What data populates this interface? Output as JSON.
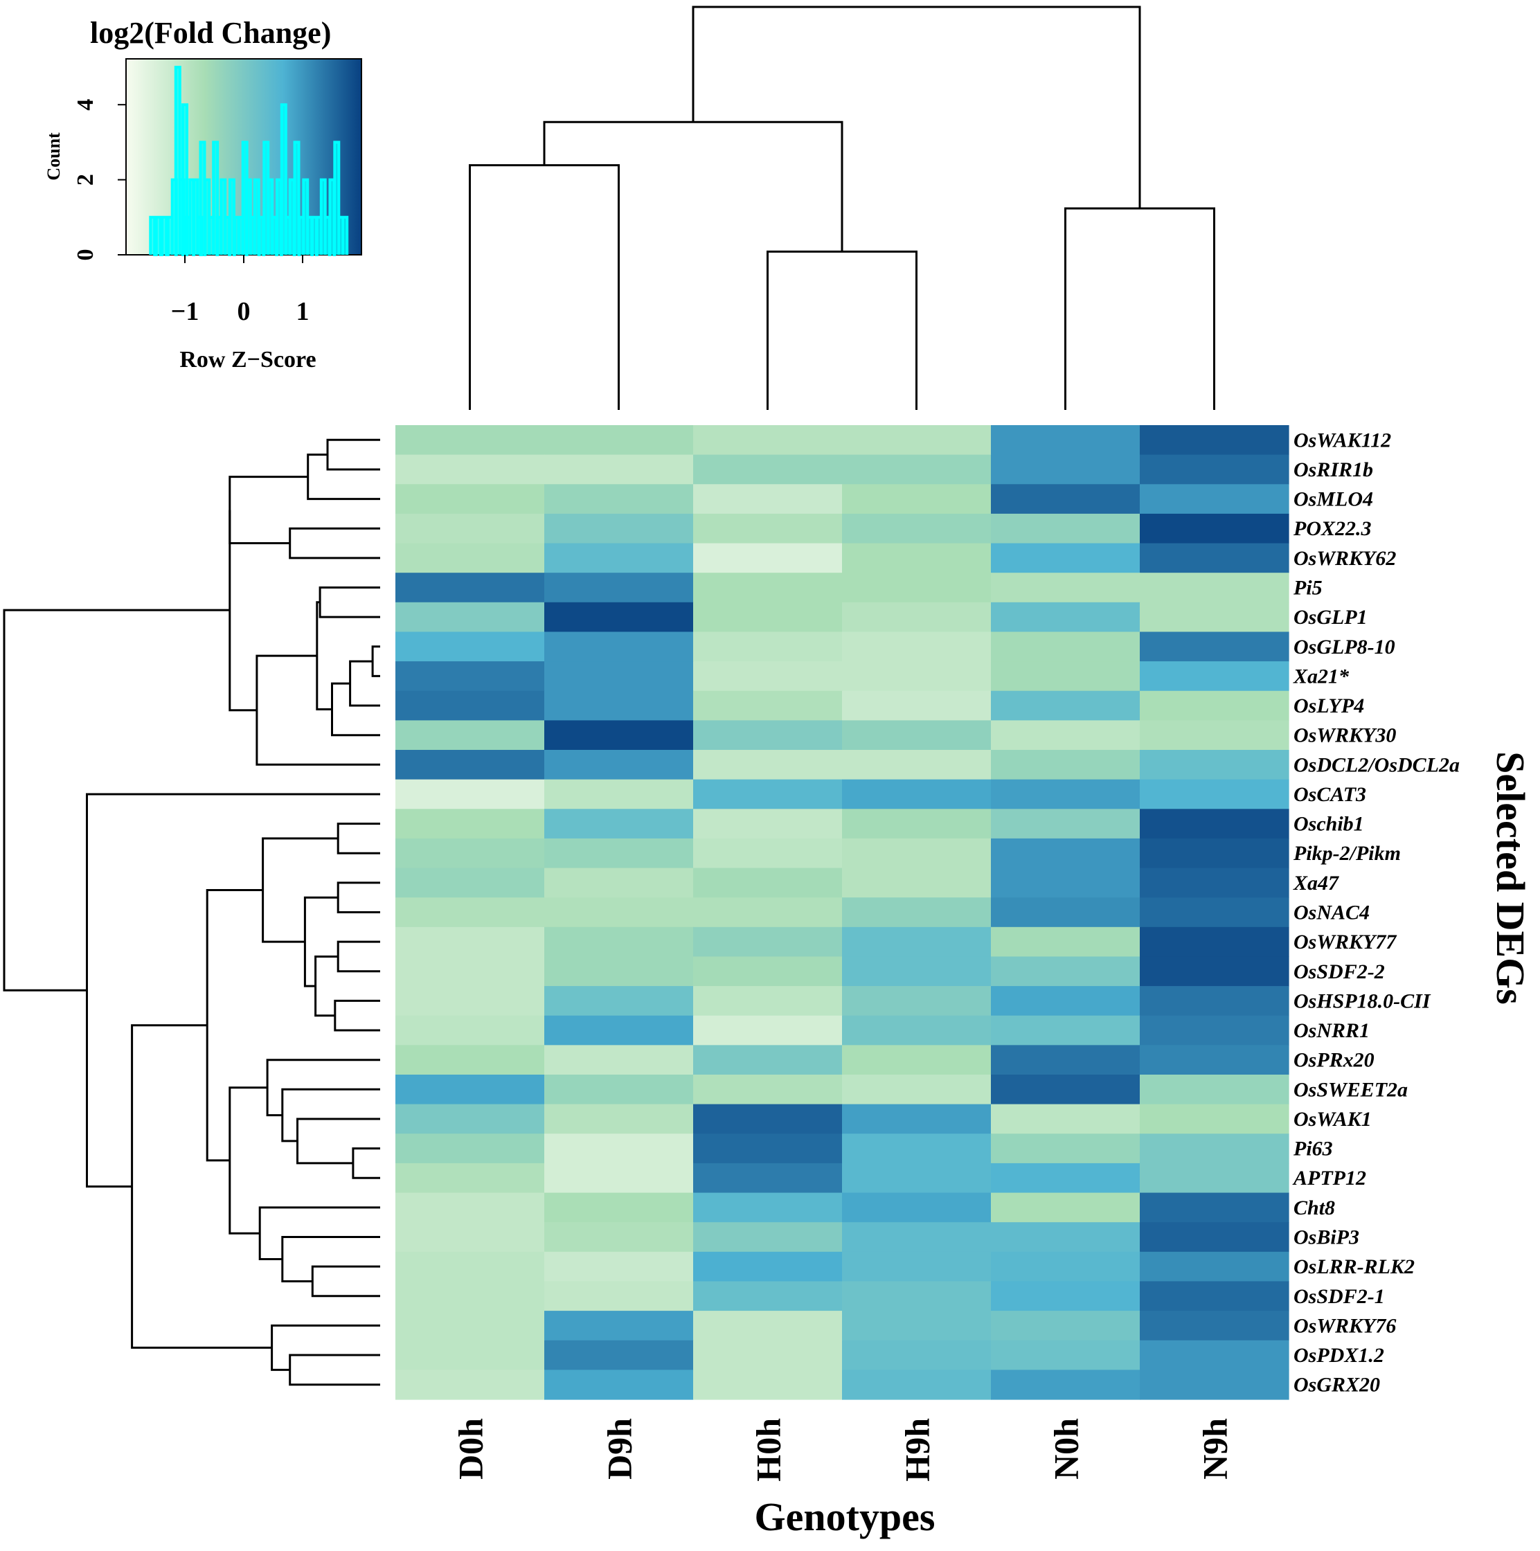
{
  "chart_data": {
    "type": "heatmap",
    "title": "log2(Fold Change)",
    "xlabel": "Genotypes",
    "ylabel": "Selected DEGs",
    "columns": [
      "D0h",
      "D9h",
      "H0h",
      "H9h",
      "N0h",
      "N9h"
    ],
    "rows": [
      "OsWAK112",
      "OsRIR1b",
      "OsMLO4",
      "POX22.3",
      "OsWRKY62",
      "Pi5",
      "OsGLP1",
      "OsGLP8-10",
      "Xa21*",
      "OsLYP4",
      "OsWRKY30",
      "OsDCL2/OsDCL2a",
      "OsCAT3",
      "Oschib1",
      "Pikp-2/Pikm",
      "Xa47",
      "OsNAC4",
      "OsWRKY77",
      "OsSDF2-2",
      "OsHSP18.0-CII",
      "OsNRR1",
      "OsPRx20",
      "OsSWEET2a",
      "OsWAK1",
      "Pi63",
      "APTP12",
      "Cht8",
      "OsBiP3",
      "OsLRR-RLK2",
      "OsSDF2-1",
      "OsWRKY76",
      "OsPDX1.2",
      "OsGRX20"
    ],
    "values": [
      [
        -0.6,
        -0.6,
        -0.9,
        -0.9,
        1.0,
        1.7
      ],
      [
        -1.1,
        -1.1,
        -0.4,
        -0.4,
        1.0,
        1.5
      ],
      [
        -0.7,
        -0.4,
        -1.2,
        -0.7,
        1.5,
        1.0
      ],
      [
        -0.9,
        0.0,
        -0.8,
        -0.4,
        -0.3,
        1.9
      ],
      [
        -0.8,
        0.4,
        -1.5,
        -0.7,
        0.6,
        1.5
      ],
      [
        1.4,
        1.2,
        -0.7,
        -0.7,
        -0.8,
        -0.8
      ],
      [
        -0.1,
        1.9,
        -0.7,
        -0.9,
        0.3,
        -0.8
      ],
      [
        0.6,
        1.0,
        -1.0,
        -1.1,
        -0.6,
        1.3
      ],
      [
        1.3,
        1.0,
        -1.1,
        -1.1,
        -0.6,
        0.6
      ],
      [
        1.4,
        1.0,
        -0.8,
        -1.2,
        0.3,
        -0.7
      ],
      [
        -0.4,
        1.9,
        -0.1,
        -0.3,
        -1.0,
        -0.8
      ],
      [
        1.4,
        1.0,
        -1.1,
        -1.1,
        -0.4,
        0.3
      ],
      [
        -1.5,
        -1.0,
        0.5,
        0.8,
        0.9,
        0.6
      ],
      [
        -0.7,
        0.3,
        -1.1,
        -0.6,
        -0.2,
        1.8
      ],
      [
        -0.5,
        -0.4,
        -1.0,
        -0.9,
        1.0,
        1.7
      ],
      [
        -0.4,
        -0.9,
        -0.6,
        -0.9,
        1.0,
        1.6
      ],
      [
        -0.8,
        -0.8,
        -0.8,
        -0.3,
        1.1,
        1.5
      ],
      [
        -1.1,
        -0.5,
        -0.3,
        0.3,
        -0.6,
        1.8
      ],
      [
        -1.1,
        -0.5,
        -0.6,
        0.3,
        0.0,
        1.8
      ],
      [
        -1.1,
        0.2,
        -1.0,
        -0.1,
        0.8,
        1.4
      ],
      [
        -1.0,
        0.8,
        -1.4,
        0.1,
        0.2,
        1.3
      ],
      [
        -0.7,
        -1.1,
        0.0,
        -0.7,
        1.4,
        1.2
      ],
      [
        0.8,
        -0.4,
        -0.8,
        -1.0,
        1.6,
        -0.4
      ],
      [
        0.0,
        -0.9,
        1.6,
        0.9,
        -1.0,
        -0.7
      ],
      [
        -0.4,
        -1.4,
        1.5,
        0.5,
        -0.4,
        0.0
      ],
      [
        -0.8,
        -1.4,
        1.3,
        0.5,
        0.6,
        0.0
      ],
      [
        -1.1,
        -0.7,
        0.5,
        0.8,
        -0.7,
        1.5
      ],
      [
        -1.1,
        -0.8,
        -0.1,
        0.4,
        0.4,
        1.6
      ],
      [
        -1.0,
        -1.2,
        0.7,
        0.4,
        0.5,
        1.1
      ],
      [
        -1.0,
        -1.1,
        0.3,
        0.2,
        0.6,
        1.5
      ],
      [
        -1.0,
        0.9,
        -1.1,
        0.2,
        0.1,
        1.4
      ],
      [
        -1.0,
        1.2,
        -1.1,
        0.3,
        0.2,
        1.0
      ],
      [
        -1.1,
        0.8,
        -1.1,
        0.4,
        0.9,
        1.0
      ]
    ],
    "col_dendrogram": [
      {
        "left": 0,
        "right": 1,
        "height": 1.7
      },
      {
        "left": 2,
        "right": 3,
        "height": 1.1
      },
      {
        "left": 4,
        "right": 5,
        "height": 1.4
      },
      {
        "left": 6,
        "right": 7,
        "height": 2.0
      },
      {
        "left": 9,
        "right": 8,
        "height": 2.8
      }
    ],
    "row_dendrogram": [
      {
        "left": 0,
        "right": 1,
        "height": 0.35
      },
      {
        "left": 33,
        "right": 2,
        "height": 0.48
      },
      {
        "left": 3,
        "right": 4,
        "height": 0.6
      },
      {
        "left": 34,
        "right": 35,
        "height": 1.0
      },
      {
        "left": 5,
        "right": 6,
        "height": 0.4
      },
      {
        "left": 7,
        "right": 8,
        "height": 0.05
      },
      {
        "left": 38,
        "right": 9,
        "height": 0.2
      },
      {
        "left": 39,
        "right": 10,
        "height": 0.32
      },
      {
        "left": 37,
        "right": 40,
        "height": 0.42
      },
      {
        "left": 41,
        "right": 11,
        "height": 0.82
      },
      {
        "left": 36,
        "right": 42,
        "height": 1.0
      },
      {
        "left": 13,
        "right": 14,
        "height": 0.28
      },
      {
        "left": 15,
        "right": 16,
        "height": 0.28
      },
      {
        "left": 17,
        "right": 18,
        "height": 0.28
      },
      {
        "left": 19,
        "right": 20,
        "height": 0.3
      },
      {
        "left": 46,
        "right": 47,
        "height": 0.43
      },
      {
        "left": 45,
        "right": 48,
        "height": 0.5
      },
      {
        "left": 44,
        "right": 49,
        "height": 0.78
      },
      {
        "left": 24,
        "right": 25,
        "height": 0.18
      },
      {
        "left": 23,
        "right": 51,
        "height": 0.55
      },
      {
        "left": 22,
        "right": 52,
        "height": 0.65
      },
      {
        "left": 21,
        "right": 53,
        "height": 0.75
      },
      {
        "left": 28,
        "right": 29,
        "height": 0.45
      },
      {
        "left": 27,
        "right": 55,
        "height": 0.65
      },
      {
        "left": 26,
        "right": 56,
        "height": 0.8
      },
      {
        "left": 54,
        "right": 57,
        "height": 1.0
      },
      {
        "left": 50,
        "right": 58,
        "height": 1.15
      },
      {
        "left": 31,
        "right": 32,
        "height": 0.6
      },
      {
        "left": 30,
        "right": 60,
        "height": 0.72
      },
      {
        "left": 59,
        "right": 61,
        "height": 1.65
      },
      {
        "left": 12,
        "right": 62,
        "height": 1.95
      },
      {
        "left": 43,
        "right": 63,
        "height": 2.5
      }
    ],
    "color_key": {
      "title": "log2(Fold Change)",
      "xlabel": "Row Z−Score",
      "ylabel": "Count",
      "xlim": [
        -2,
        2
      ],
      "ylim": [
        0,
        5
      ],
      "xticks": [
        -1,
        0,
        1
      ],
      "xtick_labels": [
        "−1",
        "0",
        "1"
      ],
      "yticks": [
        0,
        2,
        4
      ],
      "ytick_labels": [
        "0",
        "2",
        "4"
      ],
      "histogram_x": [
        -1.55,
        -1.45,
        -1.35,
        -1.25,
        -1.18,
        -1.12,
        -1.05,
        -1.0,
        -0.95,
        -0.88,
        -0.82,
        -0.75,
        -0.7,
        -0.62,
        -0.55,
        -0.48,
        -0.42,
        -0.35,
        -0.28,
        -0.2,
        -0.12,
        -0.05,
        0.02,
        0.08,
        0.15,
        0.22,
        0.3,
        0.38,
        0.45,
        0.52,
        0.6,
        0.68,
        0.75,
        0.82,
        0.9,
        0.98,
        1.05,
        1.12,
        1.2,
        1.28,
        1.35,
        1.42,
        1.5,
        1.58,
        1.65,
        1.72
      ],
      "histogram_counts": [
        1,
        1,
        1,
        1,
        2,
        5,
        2,
        4,
        1,
        2,
        2,
        1,
        3,
        2,
        1,
        3,
        1,
        2,
        1,
        2,
        1,
        1,
        3,
        2,
        1,
        2,
        1,
        3,
        2,
        1,
        2,
        4,
        1,
        2,
        3,
        1,
        2,
        1,
        1,
        1,
        2,
        1,
        2,
        3,
        1,
        1
      ],
      "gradient_colors": [
        "#f7fcf0",
        "#a8ddb5",
        "#4eb3d3",
        "#084081"
      ]
    },
    "colors": {
      "cyan_histogram": "#00ffff",
      "line": "#000000"
    }
  }
}
